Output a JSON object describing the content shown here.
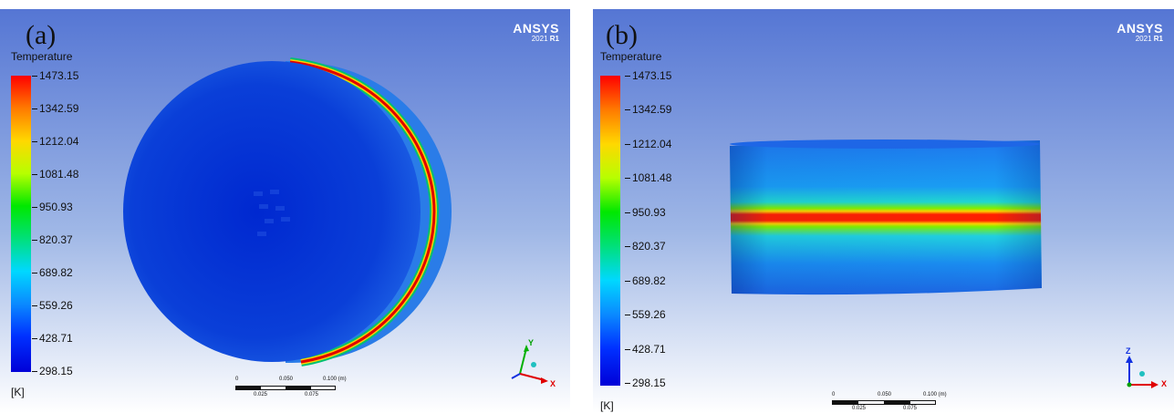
{
  "panels": [
    {
      "label": "(a)",
      "legend_title": "Temperature",
      "unit": "[K]",
      "logo": {
        "brand": "ANSYS",
        "version_year": "2021",
        "version_rel": "R1"
      },
      "ticks": [
        "1473.15",
        "1342.59",
        "1212.04",
        "1081.48",
        "950.93",
        "820.37",
        "689.82",
        "559.26",
        "428.71",
        "298.15"
      ],
      "scale": {
        "top": [
          "0",
          "0.050",
          "0.100 (m)"
        ],
        "bottom": [
          "0.025",
          "0.075"
        ]
      },
      "axes": [
        "Y",
        "X"
      ]
    },
    {
      "label": "(b)",
      "legend_title": "Temperature",
      "unit": "[K]",
      "logo": {
        "brand": "ANSYS",
        "version_year": "2021",
        "version_rel": "R1"
      },
      "ticks": [
        "1473.15",
        "1342.59",
        "1212.04",
        "1081.48",
        "950.93",
        "820.37",
        "689.82",
        "559.26",
        "428.71",
        "298.15"
      ],
      "scale": {
        "top": [
          "0",
          "0.050",
          "0.100 (m)"
        ],
        "bottom": [
          "0.025",
          "0.075"
        ]
      },
      "axes": [
        "Z",
        "X"
      ]
    }
  ]
}
